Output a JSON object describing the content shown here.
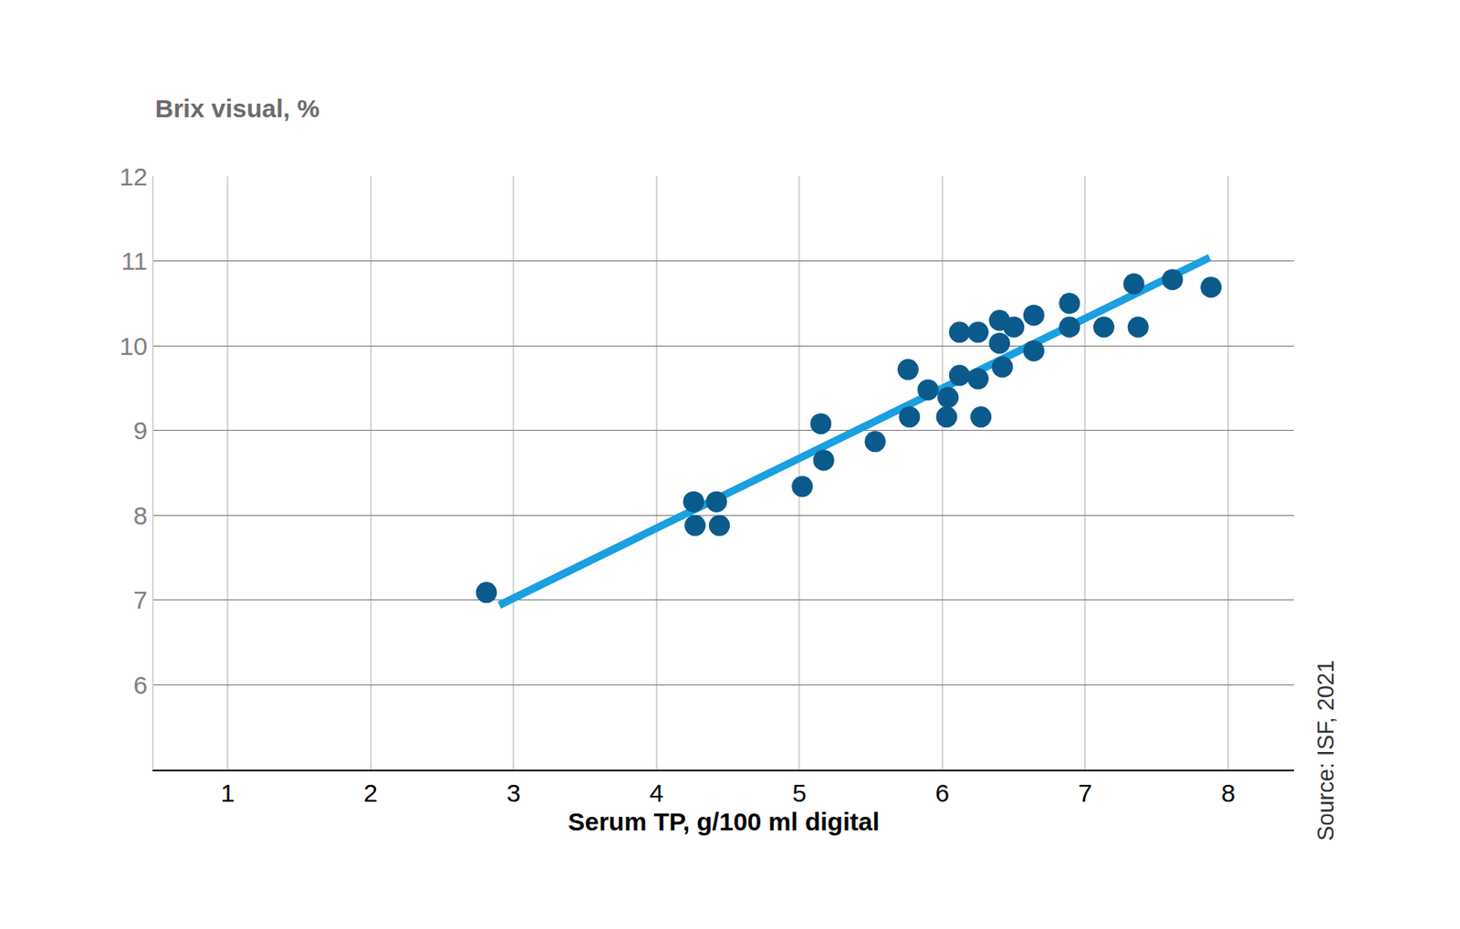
{
  "chart_data": {
    "type": "scatter",
    "y_label": "Brix visual, %",
    "x_label": "Serum TP, g/100 ml digital",
    "source": "Source: ISF, 2021",
    "xlim": [
      0.48,
      8.46
    ],
    "ylim": [
      5,
      12
    ],
    "xticks": [
      1,
      2,
      3,
      4,
      5,
      6,
      7,
      8
    ],
    "yticks": [
      6,
      7,
      8,
      9,
      10,
      11,
      12
    ],
    "grid": true,
    "series": [
      {
        "type": "scatter",
        "marker": "circle",
        "color": "#0b5a8c",
        "x": [
          2.81,
          4.26,
          4.42,
          4.27,
          4.44,
          5.02,
          5.15,
          5.17,
          5.53,
          5.76,
          5.77,
          5.9,
          6.03,
          6.04,
          6.12,
          6.12,
          6.25,
          6.25,
          6.27,
          6.4,
          6.4,
          6.42,
          6.5,
          6.64,
          6.64,
          6.89,
          6.89,
          7.13,
          7.34,
          7.37,
          7.61,
          7.88
        ],
        "values": [
          7.09,
          8.16,
          8.16,
          7.88,
          7.88,
          8.34,
          9.08,
          8.65,
          8.87,
          9.72,
          9.16,
          9.48,
          9.16,
          9.39,
          10.16,
          9.65,
          10.16,
          9.61,
          9.16,
          10.3,
          10.03,
          9.75,
          10.22,
          10.36,
          9.94,
          10.5,
          10.22,
          10.22,
          10.73,
          10.22,
          10.78,
          10.69
        ]
      },
      {
        "type": "line",
        "line_style": "solid",
        "color": "#1a9fe0",
        "x": [
          2.9,
          7.87
        ],
        "values": [
          6.94,
          11.04
        ]
      }
    ]
  }
}
